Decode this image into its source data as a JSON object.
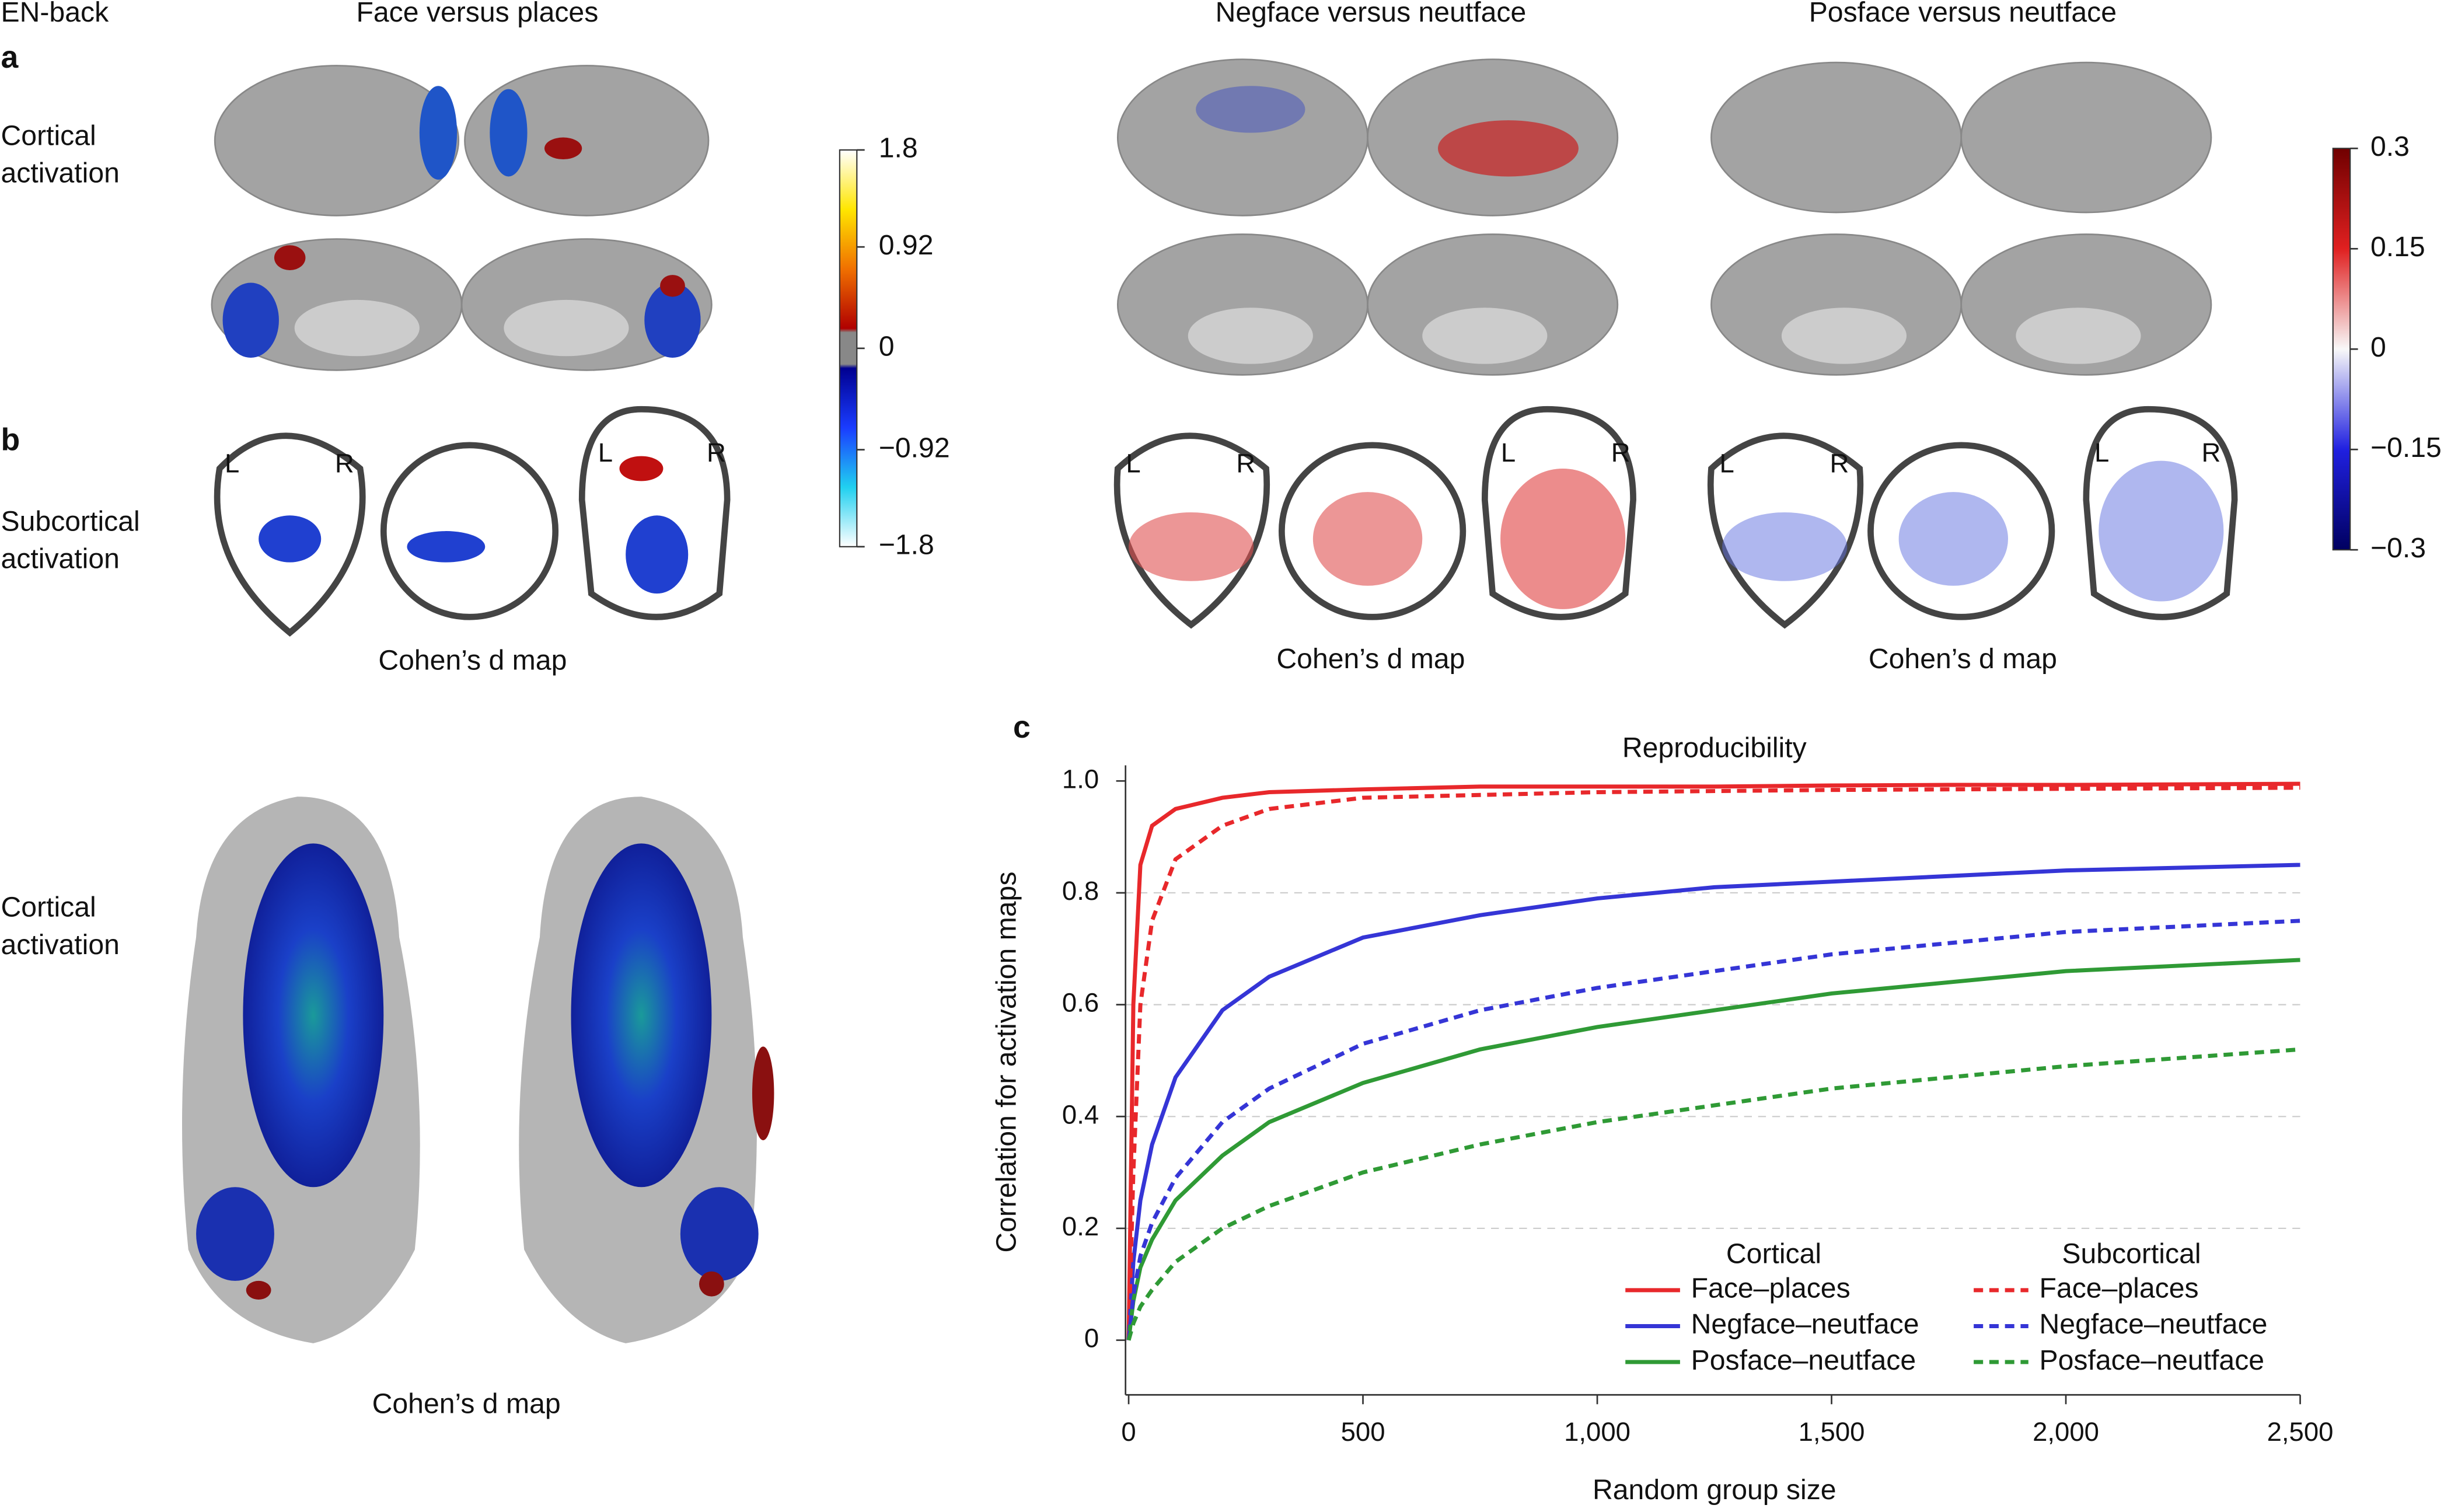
{
  "header": "EN-back",
  "panel_labels": [
    "a",
    "b",
    "c"
  ],
  "row_labels": {
    "cortical": [
      "Cortical",
      "activation"
    ],
    "subcortical": [
      "Subcortical",
      "activation"
    ]
  },
  "column_titles": [
    "Face versus places",
    "Negface versus neutface",
    "Posface versus neutface"
  ],
  "map_caption": "Cohen’s d map",
  "hemisphere_labels": [
    "L",
    "R"
  ],
  "colorbars": [
    {
      "lim": [
        -1.8,
        1.8
      ],
      "ticks": [
        1.8,
        0.92,
        0,
        {
          "value": -0.92,
          "label": "−0.92"
        },
        {
          "value": -1.8,
          "label": "−1.8"
        }
      ]
    },
    {
      "lim": [
        -0.3,
        0.3
      ],
      "ticks": [
        0.3,
        0.15,
        0,
        {
          "value": -0.15,
          "label": "−0.15"
        },
        {
          "value": -0.3,
          "label": "−0.3"
        }
      ]
    }
  ],
  "chart_data": {
    "type": "line",
    "title": "Reproducibility",
    "x_label": "Random group size",
    "y_label": "Correlation for activation maps",
    "legend_titles": [
      "Cortical",
      "Subcortical"
    ],
    "x": [
      0,
      10,
      25,
      50,
      100,
      200,
      300,
      500,
      750,
      1000,
      1250,
      1500,
      1750,
      2000,
      2250,
      2500
    ],
    "series": [
      {
        "name": "Face–places",
        "color": "#e8282b",
        "linestyle": "solid",
        "values": [
          0,
          0.6,
          0.85,
          0.92,
          0.95,
          0.97,
          0.98,
          0.985,
          0.99,
          0.99,
          0.99,
          0.992,
          0.993,
          0.993,
          0.994,
          0.995
        ]
      },
      {
        "name": "Negface–neutface",
        "color": "#3535d6",
        "linestyle": "solid",
        "values": [
          0,
          0.14,
          0.25,
          0.35,
          0.47,
          0.59,
          0.65,
          0.72,
          0.76,
          0.79,
          0.81,
          0.82,
          0.83,
          0.84,
          0.845,
          0.85
        ]
      },
      {
        "name": "Posface–neutface",
        "color": "#2f9a35",
        "linestyle": "solid",
        "values": [
          0,
          0.07,
          0.13,
          0.18,
          0.25,
          0.33,
          0.39,
          0.46,
          0.52,
          0.56,
          0.59,
          0.62,
          0.64,
          0.66,
          0.67,
          0.68
        ]
      },
      {
        "name": "Face–places",
        "color": "#e8282b",
        "linestyle": "dashed",
        "values": [
          0,
          0.3,
          0.6,
          0.75,
          0.86,
          0.92,
          0.95,
          0.97,
          0.975,
          0.98,
          0.982,
          0.984,
          0.985,
          0.986,
          0.987,
          0.988
        ]
      },
      {
        "name": "Negface–neutface",
        "color": "#3535d6",
        "linestyle": "dashed",
        "values": [
          0,
          0.08,
          0.15,
          0.21,
          0.29,
          0.39,
          0.45,
          0.53,
          0.59,
          0.63,
          0.66,
          0.69,
          0.71,
          0.73,
          0.74,
          0.75
        ]
      },
      {
        "name": "Posface–neutface",
        "color": "#2f9a35",
        "linestyle": "dashed",
        "values": [
          0,
          0.03,
          0.06,
          0.09,
          0.14,
          0.2,
          0.24,
          0.3,
          0.35,
          0.39,
          0.42,
          0.45,
          0.47,
          0.49,
          0.505,
          0.52
        ]
      }
    ],
    "xlim": [
      0,
      2500
    ],
    "ylim": [
      0,
      1
    ],
    "xticks": [
      0,
      500,
      {
        "value": 1000,
        "label": "1,000"
      },
      {
        "value": 1500,
        "label": "1,500"
      },
      {
        "value": 2000,
        "label": "2,000"
      },
      {
        "value": 2500,
        "label": "2,500"
      }
    ],
    "yticks": [
      0,
      0.2,
      0.4,
      0.6,
      0.8,
      {
        "value": 1,
        "label": "1.0"
      }
    ],
    "grid": true
  }
}
